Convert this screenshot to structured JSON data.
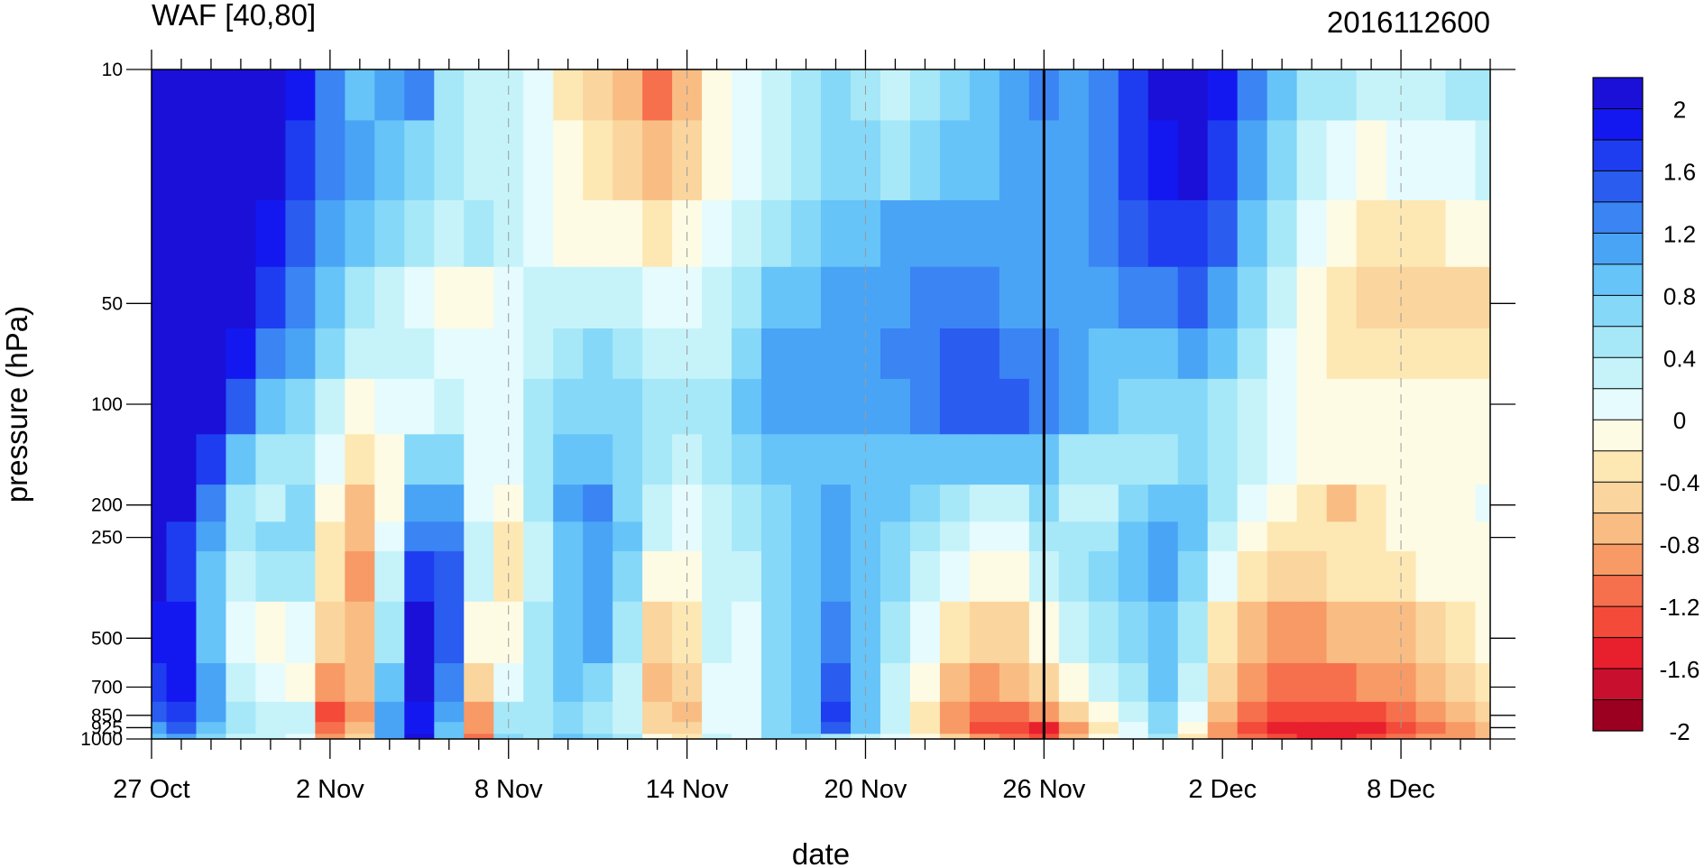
{
  "chart_data": {
    "type": "heatmap",
    "title_left": "WAF [40,80]",
    "title_right": "2016112600",
    "xlabel": "date",
    "ylabel": "pressure (hPa)",
    "x_tick_labels": [
      "27 Oct",
      "2 Nov",
      "8 Nov",
      "14 Nov",
      "20 Nov",
      "26 Nov",
      "2 Dec",
      "8 Dec"
    ],
    "x_tick_days": [
      0,
      6,
      12,
      18,
      24,
      30,
      36,
      42
    ],
    "x_range_days": [
      0,
      45
    ],
    "y_scale": "log",
    "y_reversed": true,
    "y_range": [
      10,
      1000
    ],
    "y_ticks": [
      10,
      50,
      100,
      200,
      250,
      500,
      700,
      850,
      925,
      1000
    ],
    "y_tick_labels": [
      "10",
      "50",
      "100",
      "200",
      "250",
      "500",
      "700",
      "850",
      "925",
      "1000"
    ],
    "vertical_marker_day": 30,
    "dashed_grid_days": [
      12,
      18,
      24,
      42
    ],
    "colorbar": {
      "labels": [
        "2",
        "1.6",
        "1.2",
        "0.8",
        "0.4",
        "0",
        "-0.4",
        "-0.8",
        "-1.2",
        "-1.6",
        "-2"
      ],
      "levels": [
        -2.2,
        -2.0,
        -1.8,
        -1.6,
        -1.4,
        -1.2,
        -1.0,
        -0.8,
        -0.6,
        -0.4,
        -0.2,
        0,
        0.2,
        0.4,
        0.6,
        0.8,
        1.0,
        1.2,
        1.4,
        1.6,
        1.8,
        2.0,
        2.2
      ],
      "colors": [
        "#9b0020",
        "#c8102e",
        "#e8202e",
        "#f44a3a",
        "#f6704e",
        "#f89a66",
        "#f9bd84",
        "#fbd59e",
        "#fde8b4",
        "#fefbe4",
        "#e6fbfd",
        "#c6f3fa",
        "#a6e8f8",
        "#86d8f8",
        "#66c4f8",
        "#4aa4f6",
        "#3a84f4",
        "#2a5cf0",
        "#1f3df0",
        "#1418f0",
        "#1a10d8"
      ]
    },
    "pressure_levels": [
      1000,
      925,
      850,
      700,
      500,
      300,
      250,
      200,
      150,
      100,
      70,
      50,
      30,
      20,
      10
    ],
    "days": [
      0,
      1,
      2,
      3,
      4,
      5,
      6,
      7,
      8,
      9,
      10,
      11,
      12,
      13,
      14,
      15,
      16,
      17,
      18,
      19,
      20,
      21,
      22,
      23,
      24,
      25,
      26,
      27,
      28,
      29,
      30,
      31,
      32,
      33,
      34,
      35,
      36,
      37,
      38,
      39,
      40,
      41,
      42,
      43,
      44,
      45
    ],
    "values": [
      [
        0.6,
        0.8,
        0.5,
        0.1,
        0.0,
        -0.1,
        -1.2,
        -0.8,
        0.8,
        1.8,
        0.6,
        -1.4,
        0.4,
        0.2,
        0.6,
        0.4,
        0.2,
        -0.4,
        -0.6,
        0.0,
        -0.2,
        0.4,
        0.4,
        0.2,
        0.0,
        -0.2,
        -0.4,
        -0.8,
        -1.2,
        -1.4,
        -1.6,
        -1.0,
        -0.4,
        -0.2,
        0.2,
        -0.6,
        -1.2,
        -1.4,
        -1.6,
        -1.8,
        -1.8,
        -1.6,
        -1.4,
        -1.2,
        -1.2,
        -1.0
      ],
      [
        0.8,
        1.2,
        0.6,
        0.2,
        0.0,
        0.0,
        -1.4,
        -1.0,
        0.8,
        1.6,
        0.6,
        -1.2,
        0.2,
        0.2,
        0.4,
        0.2,
        0.0,
        -0.8,
        -0.8,
        -0.2,
        -0.2,
        0.4,
        0.6,
        1.2,
        0.6,
        0.0,
        -0.6,
        -1.2,
        -1.6,
        -1.6,
        -1.8,
        -1.2,
        -0.6,
        -0.2,
        0.4,
        -0.4,
        -1.2,
        -1.6,
        -1.8,
        -1.8,
        -1.8,
        -1.8,
        -1.6,
        -1.4,
        -1.2,
        -1.0
      ],
      [
        1.2,
        1.4,
        0.8,
        0.2,
        0.0,
        0.0,
        -1.6,
        -1.2,
        0.8,
        1.6,
        0.8,
        -1.2,
        0.2,
        0.2,
        0.4,
        0.2,
        0.0,
        -0.8,
        -1.0,
        -0.2,
        -0.2,
        0.4,
        0.6,
        1.4,
        0.6,
        0.0,
        -0.6,
        -1.2,
        -1.4,
        -1.4,
        -1.2,
        -0.8,
        -0.4,
        0.0,
        0.4,
        -0.2,
        -1.0,
        -1.4,
        -1.6,
        -1.6,
        -1.6,
        -1.6,
        -1.4,
        -1.2,
        -1.0,
        -0.8
      ],
      [
        1.4,
        1.6,
        0.8,
        0.0,
        -0.2,
        -0.4,
        -1.2,
        -1.0,
        0.6,
        1.8,
        1.0,
        -0.8,
        -0.2,
        0.2,
        0.6,
        0.4,
        0.0,
        -1.0,
        -0.8,
        -0.2,
        -0.2,
        0.4,
        0.6,
        1.2,
        0.6,
        0.0,
        -0.4,
        -1.0,
        -1.2,
        -1.0,
        -0.8,
        -0.4,
        0.0,
        0.2,
        0.6,
        0.0,
        -0.8,
        -1.2,
        -1.4,
        -1.4,
        -1.4,
        -1.2,
        -1.2,
        -1.0,
        -0.8,
        -0.6
      ],
      [
        1.6,
        1.6,
        0.6,
        -0.2,
        -0.4,
        -0.2,
        -0.8,
        -1.0,
        0.2,
        1.8,
        1.2,
        -0.4,
        -0.4,
        0.2,
        0.6,
        0.8,
        0.2,
        -0.8,
        -0.6,
        0.0,
        -0.2,
        0.4,
        0.6,
        1.0,
        0.6,
        0.2,
        -0.2,
        -0.6,
        -0.8,
        -0.8,
        -0.4,
        0.0,
        0.2,
        0.4,
        0.6,
        0.2,
        -0.6,
        -1.0,
        -1.2,
        -1.2,
        -1.0,
        -1.0,
        -1.0,
        -0.8,
        -0.6,
        -0.4
      ],
      [
        1.8,
        1.4,
        0.6,
        0.0,
        0.2,
        0.2,
        -0.6,
        -1.2,
        0.0,
        1.4,
        1.2,
        0.0,
        -0.6,
        0.0,
        0.6,
        0.8,
        0.4,
        -0.4,
        -0.4,
        0.0,
        0.0,
        0.4,
        0.6,
        0.8,
        0.6,
        0.4,
        0.0,
        -0.2,
        -0.4,
        -0.4,
        0.0,
        0.2,
        0.4,
        0.6,
        0.8,
        0.4,
        -0.2,
        -0.6,
        -0.8,
        -0.8,
        -0.6,
        -0.6,
        -0.6,
        -0.4,
        -0.4,
        -0.4
      ],
      [
        1.8,
        1.4,
        0.8,
        0.2,
        0.4,
        0.4,
        -0.6,
        -1.0,
        -0.2,
        1.0,
        1.0,
        0.0,
        -0.6,
        0.0,
        0.6,
        0.8,
        0.6,
        0.0,
        -0.2,
        0.0,
        0.2,
        0.4,
        0.6,
        0.8,
        0.6,
        0.4,
        0.2,
        0.0,
        -0.2,
        -0.2,
        0.2,
        0.2,
        0.2,
        0.6,
        0.8,
        0.6,
        0.0,
        -0.4,
        -0.6,
        -0.6,
        -0.6,
        -0.6,
        -0.4,
        -0.4,
        -0.4,
        -0.4
      ],
      [
        2.2,
        1.8,
        1.0,
        0.2,
        0.0,
        0.4,
        -0.4,
        -1.0,
        -0.4,
        0.8,
        0.8,
        -0.2,
        -0.4,
        0.2,
        0.8,
        1.0,
        0.4,
        0.0,
        -0.2,
        0.0,
        0.2,
        0.4,
        0.6,
        0.8,
        0.6,
        0.6,
        0.4,
        0.2,
        0.0,
        0.0,
        0.4,
        0.0,
        0.0,
        0.4,
        0.6,
        0.6,
        0.2,
        -0.2,
        -0.4,
        -0.6,
        -1.0,
        -0.6,
        -0.4,
        -0.4,
        -0.4,
        -0.2
      ],
      [
        2.2,
        2.0,
        1.4,
        0.6,
        0.2,
        0.2,
        -0.2,
        -0.6,
        -0.4,
        0.4,
        0.4,
        -0.2,
        -0.2,
        0.2,
        0.6,
        0.6,
        0.4,
        0.2,
        0.0,
        0.2,
        0.4,
        0.6,
        0.6,
        0.6,
        0.6,
        0.6,
        0.6,
        0.6,
        0.6,
        0.6,
        0.6,
        0.2,
        0.2,
        0.2,
        0.2,
        0.4,
        0.2,
        0.0,
        -0.2,
        -0.4,
        -0.4,
        -0.4,
        -0.4,
        -0.4,
        -0.4,
        -0.4
      ],
      [
        2.2,
        2.2,
        2.0,
        1.2,
        0.6,
        0.4,
        0.0,
        -0.4,
        -0.2,
        -0.2,
        0.0,
        -0.2,
        -0.2,
        0.2,
        0.4,
        0.4,
        0.4,
        0.2,
        0.2,
        0.2,
        0.6,
        0.8,
        0.8,
        0.8,
        0.8,
        0.8,
        1.0,
        1.2,
        1.2,
        1.2,
        1.0,
        0.8,
        0.6,
        0.4,
        0.4,
        0.4,
        0.2,
        0.0,
        -0.2,
        -0.4,
        -0.4,
        -0.4,
        -0.4,
        -0.4,
        -0.4,
        -0.4
      ],
      [
        2.2,
        2.2,
        2.2,
        1.6,
        1.0,
        0.8,
        0.4,
        0.0,
        0.0,
        0.0,
        -0.2,
        -0.2,
        -0.2,
        0.0,
        0.2,
        0.4,
        0.2,
        0.0,
        0.0,
        0.0,
        0.4,
        0.8,
        0.8,
        0.8,
        0.8,
        1.0,
        1.0,
        1.2,
        1.2,
        1.0,
        1.0,
        0.8,
        0.6,
        0.6,
        0.6,
        0.8,
        0.6,
        0.2,
        -0.2,
        -0.4,
        -0.6,
        -0.6,
        -0.6,
        -0.6,
        -0.6,
        -0.6
      ],
      [
        2.2,
        2.2,
        2.2,
        2.0,
        1.4,
        1.0,
        0.6,
        0.2,
        0.0,
        -0.2,
        -0.4,
        -0.4,
        -0.2,
        0.0,
        0.0,
        0.0,
        0.0,
        -0.2,
        -0.2,
        0.0,
        0.2,
        0.6,
        0.6,
        0.8,
        0.8,
        0.8,
        1.0,
        1.0,
        1.0,
        0.8,
        0.8,
        0.8,
        0.8,
        1.0,
        1.0,
        1.2,
        0.8,
        0.4,
        0.0,
        -0.4,
        -0.6,
        -0.8,
        -0.8,
        -0.8,
        -0.8,
        -0.8
      ],
      [
        2.2,
        2.2,
        2.2,
        2.2,
        1.6,
        1.2,
        0.8,
        0.6,
        0.4,
        0.2,
        0.0,
        0.2,
        0.0,
        -0.2,
        -0.4,
        -0.4,
        -0.4,
        -0.6,
        -0.4,
        -0.2,
        0.0,
        0.2,
        0.4,
        0.6,
        0.6,
        0.8,
        0.8,
        0.8,
        0.8,
        0.8,
        0.8,
        0.8,
        1.0,
        1.2,
        1.4,
        1.4,
        1.2,
        0.6,
        0.2,
        -0.2,
        -0.4,
        -0.6,
        -0.6,
        -0.6,
        -0.4,
        -0.4
      ],
      [
        2.2,
        2.2,
        2.2,
        2.2,
        1.8,
        1.4,
        1.0,
        0.8,
        0.6,
        0.4,
        0.2,
        0.0,
        0.0,
        -0.2,
        -0.4,
        -0.6,
        -0.8,
        -1.0,
        -0.8,
        -0.4,
        -0.2,
        0.0,
        0.2,
        0.4,
        0.4,
        0.2,
        0.4,
        0.6,
        0.6,
        0.8,
        0.8,
        0.8,
        1.0,
        1.4,
        1.6,
        1.8,
        1.4,
        0.8,
        0.4,
        0.0,
        -0.2,
        -0.4,
        -0.2,
        -0.2,
        -0.2,
        0.0
      ],
      [
        2.2,
        2.2,
        2.2,
        2.2,
        2.0,
        1.6,
        1.0,
        0.6,
        0.8,
        1.0,
        0.2,
        0.0,
        0.0,
        -0.2,
        -0.6,
        -0.8,
        -1.0,
        -1.4,
        -1.0,
        -0.4,
        -0.2,
        0.0,
        0.2,
        0.4,
        0.2,
        0.0,
        0.2,
        0.4,
        0.6,
        0.8,
        1.0,
        0.8,
        1.0,
        1.4,
        1.8,
        2.0,
        1.6,
        1.0,
        0.6,
        0.2,
        0.2,
        0.0,
        0.0,
        0.0,
        0.2,
        0.2
      ]
    ]
  }
}
